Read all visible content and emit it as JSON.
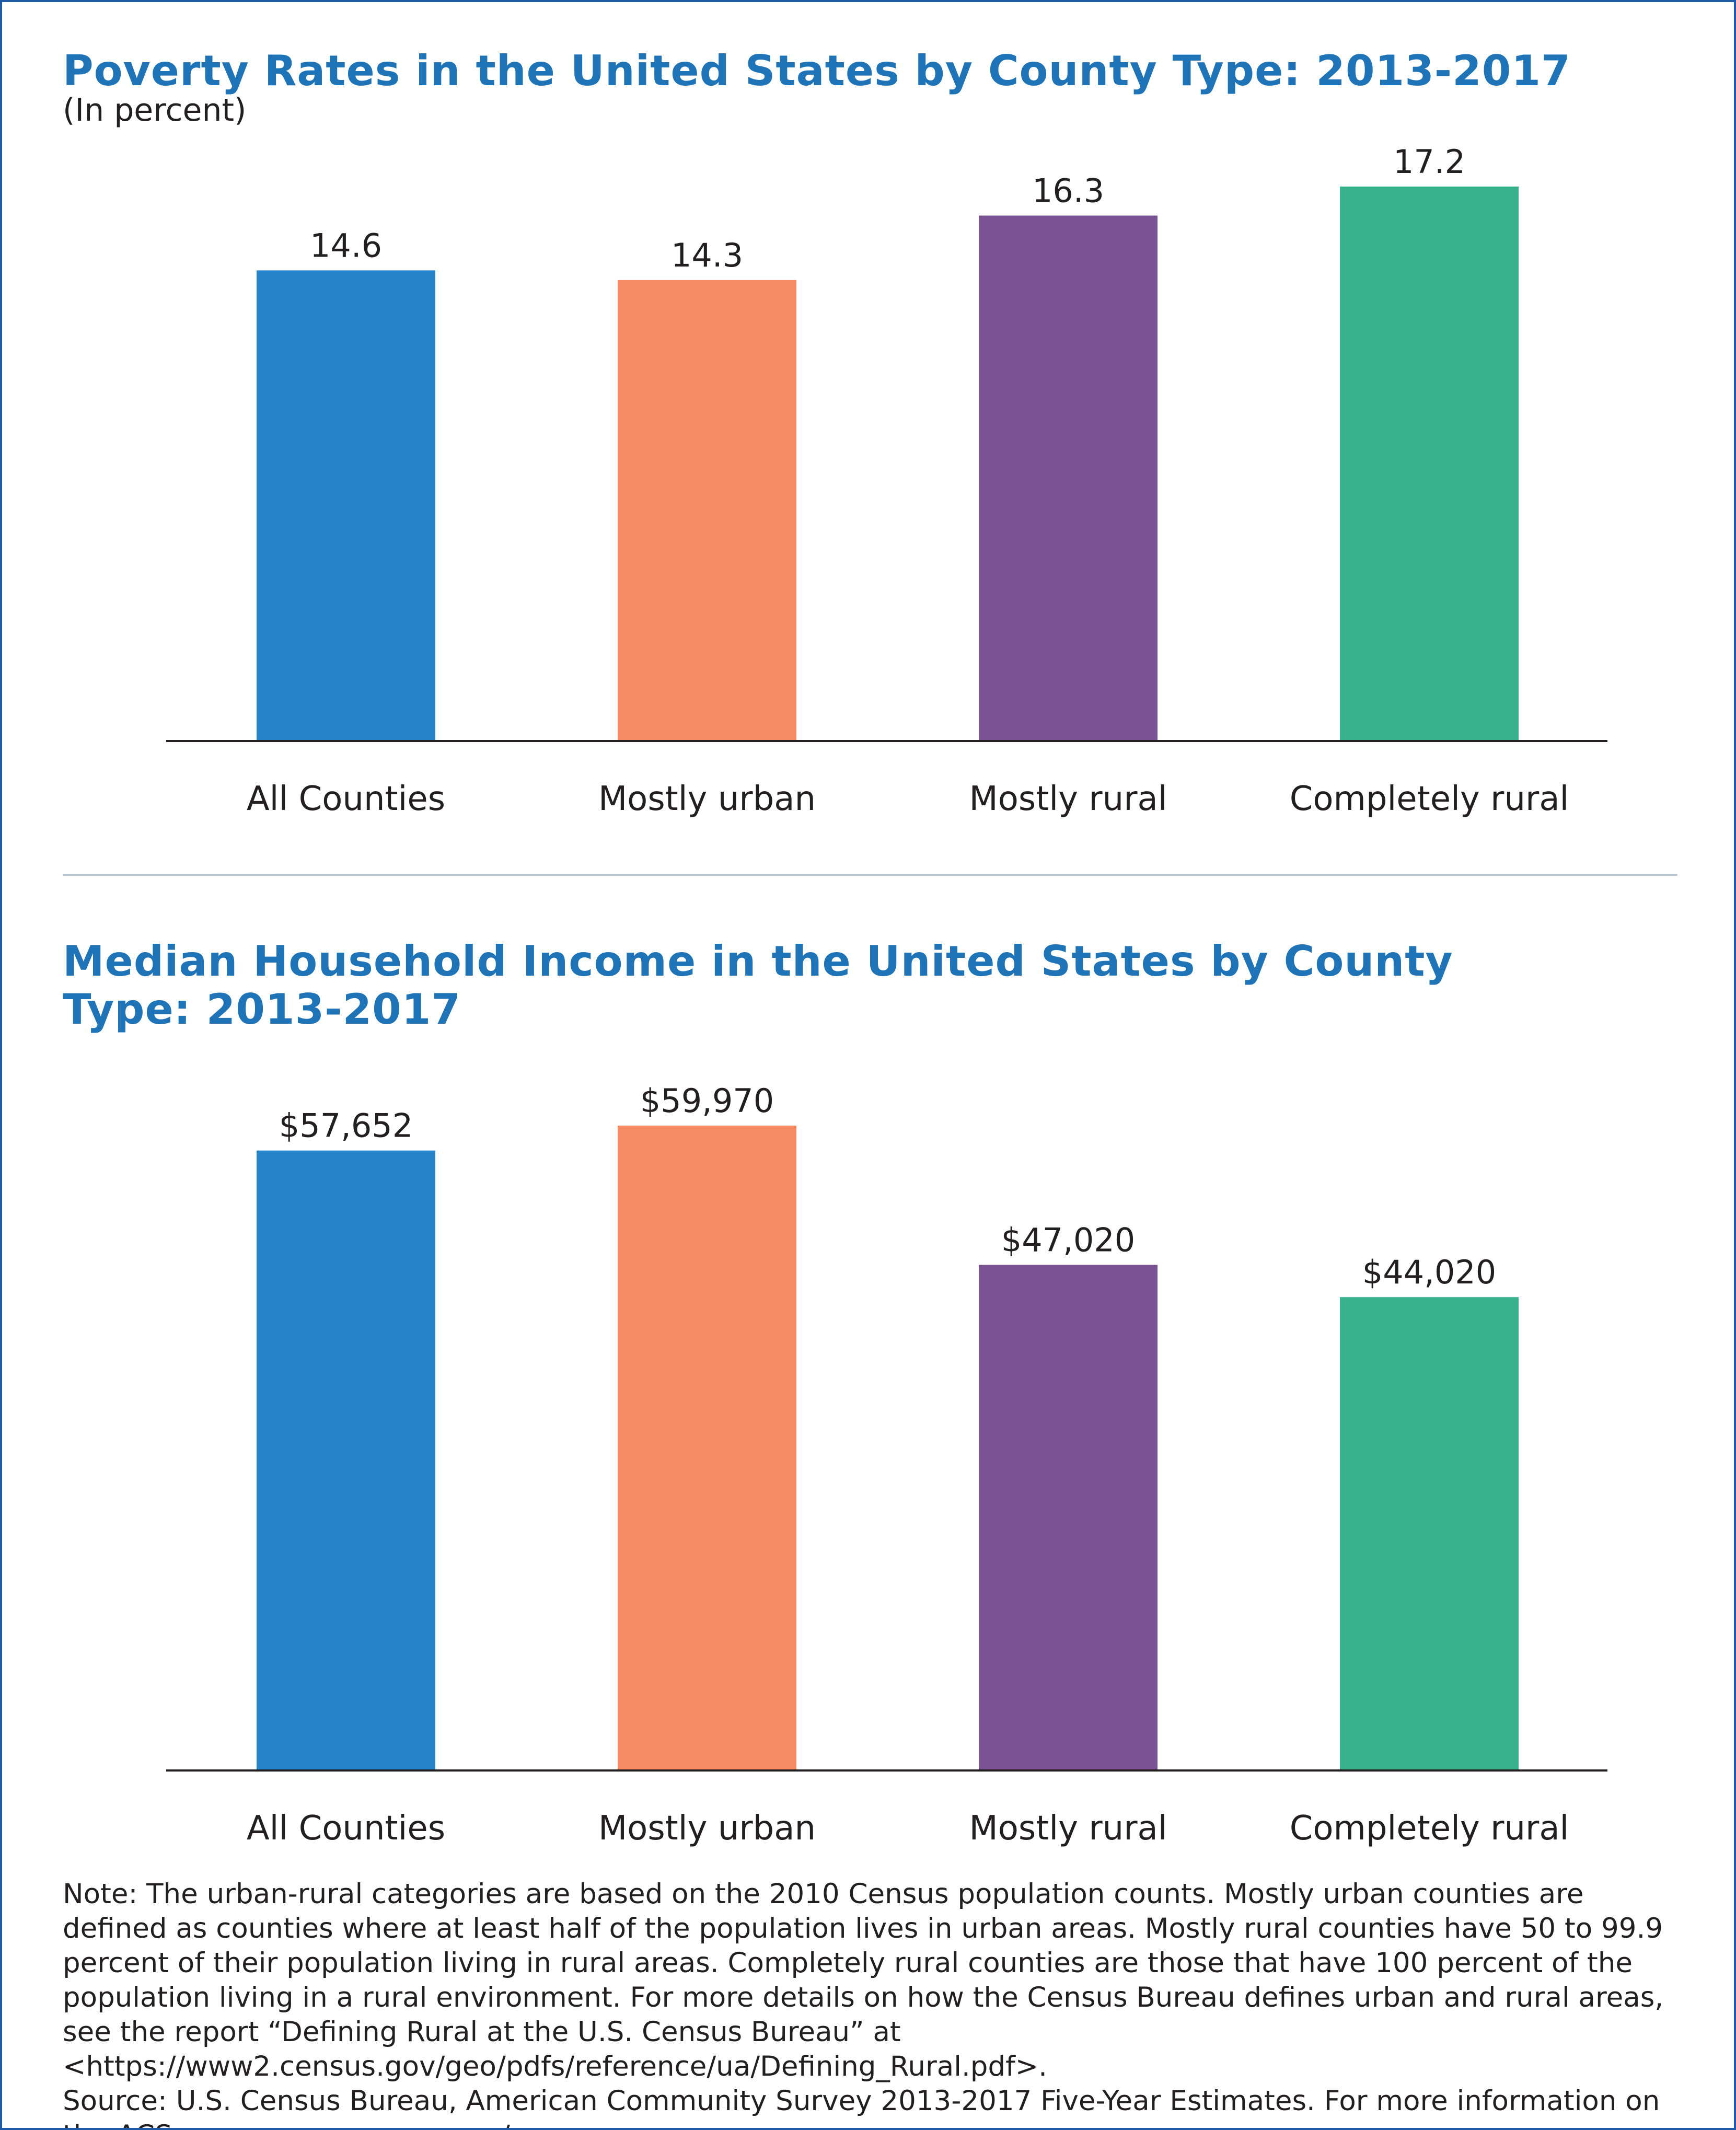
{
  "colors": {
    "title": "#1f73b7",
    "bars": [
      "#2482c6",
      "#f68a63",
      "#7b5394",
      "#37b28c"
    ],
    "axis": "#231f20",
    "divider": "#b9c6d3"
  },
  "chart_data": [
    {
      "type": "bar",
      "title": "Poverty Rates in the United States by County Type: 2013-2017",
      "subtitle": "(In percent)",
      "categories": [
        "All Counties",
        "Mostly urban",
        "Mostly rural",
        "Completely rural"
      ],
      "values": [
        14.6,
        14.3,
        16.3,
        17.2
      ],
      "value_labels": [
        "14.6",
        "14.3",
        "16.3",
        "17.2"
      ],
      "ylim": [
        0,
        17.2
      ],
      "grid": false,
      "legend": "none"
    },
    {
      "type": "bar",
      "title": "Median Household Income in the United States by County Type: 2013-2017",
      "subtitle": "",
      "categories": [
        "All Counties",
        "Mostly urban",
        "Mostly rural",
        "Completely rural"
      ],
      "values": [
        57652,
        59970,
        47020,
        44020
      ],
      "value_labels": [
        "$57,652",
        "$59,970",
        "$47,020",
        "$44,020"
      ],
      "ylim": [
        0,
        59970
      ],
      "grid": false,
      "legend": "none"
    }
  ],
  "note": "Note: The urban-rural categories are based on the 2010 Census population counts. Mostly urban counties are defined as counties where at least half of the population lives in urban areas. Mostly rural counties have 50 to 99.9 percent of their population living in rural areas. Completely rural counties are those that have 100 percent of the population living in a rural environment. For more details on how the Census Bureau defines urban and rural areas, see the report “Defining Rural at the U.S. Census Bureau” at <https://www2.census.gov/geo/pdfs/reference/ua/Defining_Rural.pdf>.",
  "source": "Source: U.S. Census Bureau, American Community Survey 2013-2017 Five-Year Estimates. For more information on the ACS, see <www.census.gov/acs>."
}
